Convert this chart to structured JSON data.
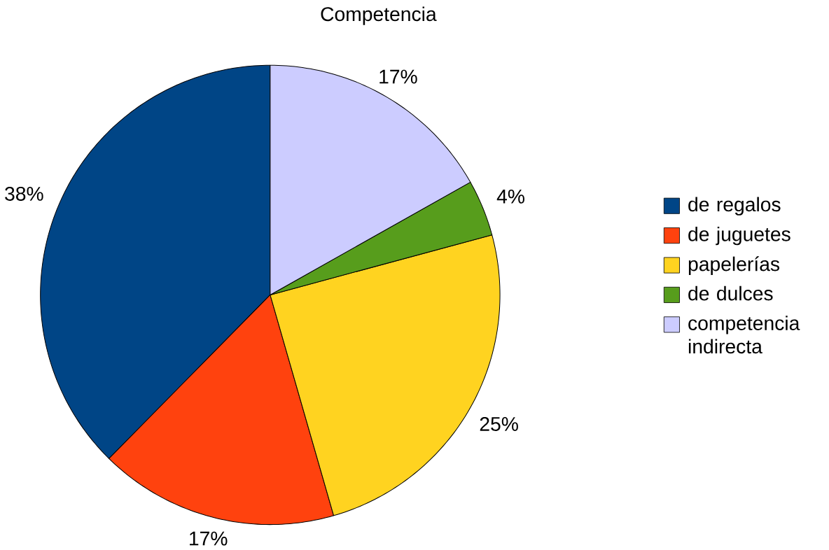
{
  "chart_data": {
    "type": "pie",
    "title": "Competencia",
    "categories": [
      "de regalos",
      "de juguetes",
      "papelerías",
      "de dulces",
      "competencia indirecta"
    ],
    "values": [
      38,
      17,
      25,
      4,
      17
    ],
    "value_labels": [
      "38%",
      "17%",
      "25%",
      "4%",
      "17%"
    ],
    "colors": [
      "#004586",
      "#ff420e",
      "#ffd320",
      "#579d1c",
      "#ccccff"
    ],
    "legend": "right"
  }
}
